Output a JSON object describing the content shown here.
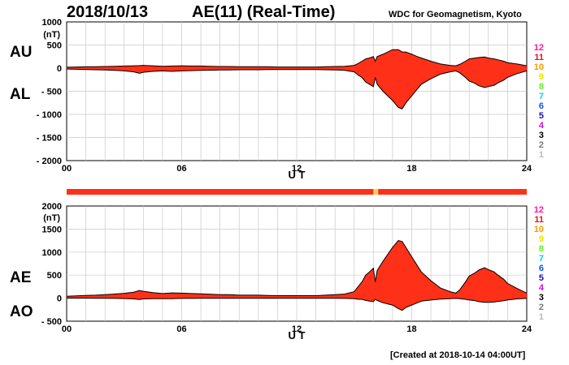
{
  "header": {
    "date": "2018/10/13",
    "title": "AE(11) (Real-Time)",
    "source": "WDC for Geomagnetism, Kyoto",
    "created": "[Created at 2018-10-14 04:00UT]"
  },
  "colors": {
    "fill": "#ff3018",
    "outline": "#000000",
    "grid": "#c8c8c8",
    "station_bar": "#ff3018",
    "station_bar_flecks": "#ffcc55"
  },
  "station_counts": [
    {
      "label": "12",
      "color": "#ff1a9c"
    },
    {
      "label": "11",
      "color": "#e8101a"
    },
    {
      "label": "10",
      "color": "#ff9900"
    },
    {
      "label": "9",
      "color": "#e6e600"
    },
    {
      "label": "8",
      "color": "#66ee22"
    },
    {
      "label": "7",
      "color": "#11ccdd"
    },
    {
      "label": "6",
      "color": "#1155ee"
    },
    {
      "label": "5",
      "color": "#2211aa"
    },
    {
      "label": "4",
      "color": "#cc11dd"
    },
    {
      "label": "3",
      "color": "#000000"
    },
    {
      "label": "2",
      "color": "#777777"
    },
    {
      "label": "1",
      "color": "#bbbbbb"
    }
  ],
  "chart_data": [
    {
      "type": "area",
      "name": "AU-AL",
      "labels_left": [
        "AU",
        "AL"
      ],
      "unit": "(nT)",
      "xlabel": "U T",
      "xlim": [
        0,
        24
      ],
      "xticks": [
        "00",
        "06",
        "12",
        "18",
        "24"
      ],
      "ylim": [
        -2000,
        1000
      ],
      "yticks": [
        "1000",
        "500",
        "0",
        "- 500",
        "- 1000",
        "- 1500",
        "- 2000"
      ],
      "ytick_values": [
        1000,
        500,
        0,
        -500,
        -1000,
        -1500,
        -2000
      ],
      "grid": true,
      "x": [
        0,
        0.5,
        1,
        1.5,
        2,
        2.5,
        3,
        3.5,
        3.8,
        4,
        4.5,
        5,
        5.5,
        6,
        6.5,
        7,
        7.5,
        8,
        8.5,
        9,
        9.5,
        10,
        10.5,
        11,
        11.5,
        12,
        12.5,
        13,
        13.5,
        14,
        14.5,
        15,
        15.2,
        15.4,
        15.6,
        15.8,
        16,
        16.1,
        16.2,
        16.5,
        17,
        17.3,
        17.5,
        17.7,
        18,
        18.3,
        18.5,
        19,
        19.5,
        20,
        20.3,
        20.5,
        20.8,
        21,
        21.3,
        21.5,
        21.8,
        22,
        22.3,
        22.5,
        22.8,
        23,
        23.5,
        24
      ],
      "series": [
        {
          "values": [
            20,
            25,
            30,
            30,
            35,
            40,
            45,
            50,
            55,
            60,
            50,
            40,
            45,
            50,
            45,
            45,
            40,
            35,
            35,
            30,
            30,
            30,
            30,
            25,
            25,
            25,
            25,
            25,
            30,
            35,
            40,
            60,
            100,
            150,
            200,
            220,
            250,
            150,
            250,
            300,
            400,
            400,
            350,
            350,
            300,
            250,
            220,
            150,
            90,
            60,
            50,
            80,
            150,
            200,
            220,
            230,
            240,
            220,
            200,
            180,
            150,
            120,
            90,
            50
          ]
        },
        {
          "values": [
            -20,
            -25,
            -30,
            -35,
            -40,
            -50,
            -60,
            -80,
            -110,
            -90,
            -70,
            -60,
            -70,
            -60,
            -55,
            -50,
            -45,
            -40,
            -40,
            -35,
            -35,
            -35,
            -30,
            -30,
            -30,
            -30,
            -30,
            -30,
            -35,
            -40,
            -50,
            -80,
            -150,
            -200,
            -300,
            -350,
            -400,
            -200,
            -350,
            -500,
            -700,
            -850,
            -880,
            -750,
            -600,
            -450,
            -350,
            -230,
            -130,
            -80,
            -60,
            -100,
            -200,
            -280,
            -330,
            -380,
            -420,
            -400,
            -370,
            -320,
            -260,
            -200,
            -120,
            -60
          ]
        }
      ]
    },
    {
      "type": "area",
      "name": "AE-AO",
      "labels_left": [
        "AE",
        "AO"
      ],
      "unit": "(nT)",
      "xlabel": "U T",
      "xlim": [
        0,
        24
      ],
      "xticks": [
        "00",
        "06",
        "12",
        "18",
        "24"
      ],
      "ylim": [
        -500,
        2000
      ],
      "yticks": [
        "2000",
        "1500",
        "1000",
        "500",
        "0",
        "- 500"
      ],
      "ytick_values": [
        2000,
        1500,
        1000,
        500,
        0,
        -500
      ],
      "grid": true,
      "x": [
        0,
        0.5,
        1,
        1.5,
        2,
        2.5,
        3,
        3.5,
        3.8,
        4,
        4.5,
        5,
        5.5,
        6,
        6.5,
        7,
        7.5,
        8,
        8.5,
        9,
        9.5,
        10,
        10.5,
        11,
        11.5,
        12,
        12.5,
        13,
        13.5,
        14,
        14.5,
        15,
        15.2,
        15.4,
        15.6,
        15.8,
        16,
        16.1,
        16.2,
        16.5,
        17,
        17.3,
        17.5,
        17.7,
        18,
        18.3,
        18.5,
        19,
        19.5,
        20,
        20.3,
        20.5,
        20.8,
        21,
        21.3,
        21.5,
        21.8,
        22,
        22.3,
        22.5,
        22.8,
        23,
        23.5,
        24
      ],
      "series": [
        {
          "values": [
            40,
            50,
            60,
            65,
            75,
            90,
            105,
            130,
            165,
            150,
            120,
            100,
            115,
            110,
            100,
            95,
            85,
            75,
            75,
            65,
            65,
            65,
            60,
            55,
            55,
            55,
            55,
            55,
            65,
            75,
            90,
            140,
            250,
            350,
            500,
            570,
            650,
            350,
            600,
            800,
            1100,
            1250,
            1230,
            1100,
            900,
            700,
            570,
            380,
            220,
            140,
            110,
            180,
            350,
            480,
            550,
            610,
            660,
            620,
            570,
            500,
            410,
            320,
            210,
            110
          ]
        },
        {
          "values": [
            0,
            0,
            0,
            -3,
            -3,
            -5,
            -8,
            -15,
            -28,
            -15,
            -10,
            -10,
            -13,
            -5,
            -5,
            -3,
            -3,
            -3,
            -3,
            -3,
            -3,
            -3,
            0,
            -3,
            -3,
            -3,
            -3,
            -3,
            -3,
            -3,
            -5,
            -10,
            -25,
            -25,
            -50,
            -65,
            -75,
            -25,
            -50,
            -100,
            -150,
            -225,
            -265,
            -200,
            -150,
            -100,
            -65,
            -40,
            -20,
            -10,
            -5,
            -10,
            -25,
            -40,
            -55,
            -75,
            -90,
            -90,
            -85,
            -70,
            -55,
            -40,
            -15,
            -5
          ]
        }
      ]
    }
  ]
}
